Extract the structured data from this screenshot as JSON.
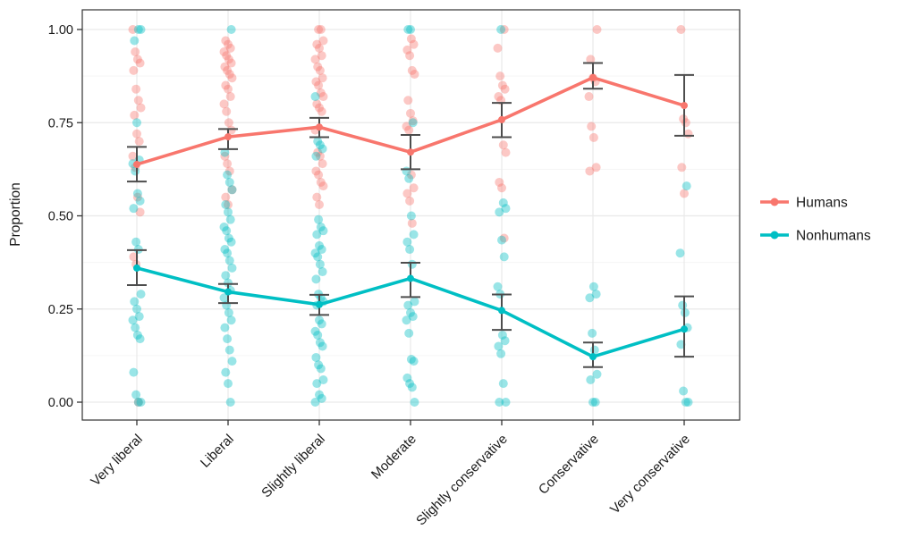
{
  "chart_data": {
    "type": "line",
    "subtype": "jittered-points-with-mean-line-and-errorbars",
    "title": "",
    "xlabel": "",
    "ylabel": "Proportion",
    "categories": [
      "Very liberal",
      "Liberal",
      "Slightly liberal",
      "Moderate",
      "Slightly conservative",
      "Conservative",
      "Very conservative"
    ],
    "y_ticks": [
      "0.00",
      "0.25",
      "0.50",
      "0.75",
      "1.00"
    ],
    "ylim": [
      0,
      1
    ],
    "grid": "horizontal major+minor, vertical major at categories",
    "legend_position": "right",
    "errorbar_color": "#4D4D4D",
    "panel_border_color": "#333333",
    "gridline_major_color": "#e9e9e9",
    "gridline_minor_color": "#f5f5f5",
    "series": [
      {
        "name": "Humans",
        "color": "#F8766D",
        "means": [
          0.638,
          0.712,
          0.738,
          0.671,
          0.758,
          0.871,
          0.796
        ],
        "ci_low": [
          0.592,
          0.679,
          0.711,
          0.625,
          0.711,
          0.841,
          0.715
        ],
        "ci_high": [
          0.685,
          0.733,
          0.763,
          0.717,
          0.803,
          0.91,
          0.878
        ],
        "points": [
          [
            1.0,
            0.94,
            0.92,
            0.91,
            0.89,
            0.84,
            0.81,
            0.79,
            0.77,
            0.72,
            0.7,
            0.66,
            0.63,
            0.55,
            0.51,
            0.39,
            0.37,
            0.0
          ],
          [
            0.97,
            0.96,
            0.95,
            0.94,
            0.93,
            0.92,
            0.91,
            0.9,
            0.89,
            0.88,
            0.87,
            0.85,
            0.84,
            0.82,
            0.8,
            0.78,
            0.75,
            0.73,
            0.66,
            0.64,
            0.62,
            0.57,
            0.55,
            0.53
          ],
          [
            1.0,
            1.0,
            0.97,
            0.96,
            0.95,
            0.93,
            0.92,
            0.9,
            0.89,
            0.87,
            0.86,
            0.85,
            0.83,
            0.82,
            0.8,
            0.79,
            0.78,
            0.73,
            0.67,
            0.66,
            0.64,
            0.62,
            0.61,
            0.59,
            0.58,
            0.55,
            0.53
          ],
          [
            0.975,
            0.96,
            0.945,
            0.93,
            0.89,
            0.88,
            0.81,
            0.775,
            0.755,
            0.74,
            0.73,
            0.61,
            0.575,
            0.56,
            0.54,
            0.48
          ],
          [
            1.0,
            0.95,
            0.875,
            0.85,
            0.84,
            0.82,
            0.81,
            0.69,
            0.67,
            0.59,
            0.575,
            0.44
          ],
          [
            1.0,
            0.92,
            0.87,
            0.86,
            0.82,
            0.74,
            0.71,
            0.63,
            0.62
          ],
          [
            1.0,
            0.76,
            0.75,
            0.72,
            0.63,
            0.56
          ]
        ]
      },
      {
        "name": "Nonhumans",
        "color": "#00BFC4",
        "means": [
          0.36,
          0.296,
          0.262,
          0.332,
          0.246,
          0.122,
          0.196
        ],
        "ci_low": [
          0.314,
          0.266,
          0.234,
          0.282,
          0.194,
          0.094,
          0.122
        ],
        "ci_high": [
          0.408,
          0.317,
          0.288,
          0.374,
          0.289,
          0.16,
          0.284
        ],
        "points": [
          [
            1.0,
            1.0,
            0.97,
            0.75,
            0.65,
            0.64,
            0.62,
            0.56,
            0.54,
            0.52,
            0.43,
            0.41,
            0.29,
            0.27,
            0.25,
            0.23,
            0.22,
            0.2,
            0.18,
            0.17,
            0.08,
            0.02,
            0.0,
            0.0
          ],
          [
            1.0,
            0.67,
            0.61,
            0.59,
            0.57,
            0.53,
            0.51,
            0.49,
            0.47,
            0.46,
            0.44,
            0.43,
            0.41,
            0.4,
            0.38,
            0.36,
            0.34,
            0.32,
            0.3,
            0.28,
            0.26,
            0.24,
            0.22,
            0.2,
            0.17,
            0.14,
            0.11,
            0.08,
            0.05,
            0.0
          ],
          [
            0.82,
            0.7,
            0.69,
            0.68,
            0.66,
            0.49,
            0.47,
            0.46,
            0.45,
            0.42,
            0.41,
            0.4,
            0.39,
            0.37,
            0.35,
            0.33,
            0.29,
            0.28,
            0.27,
            0.26,
            0.22,
            0.21,
            0.19,
            0.18,
            0.16,
            0.15,
            0.12,
            0.1,
            0.09,
            0.06,
            0.05,
            0.02,
            0.01,
            0.0
          ],
          [
            1.0,
            1.0,
            0.75,
            0.62,
            0.6,
            0.5,
            0.45,
            0.43,
            0.41,
            0.37,
            0.27,
            0.26,
            0.24,
            0.23,
            0.22,
            0.185,
            0.115,
            0.11,
            0.065,
            0.05,
            0.04,
            0.0
          ],
          [
            1.0,
            0.535,
            0.52,
            0.51,
            0.435,
            0.39,
            0.31,
            0.29,
            0.18,
            0.165,
            0.15,
            0.13,
            0.05,
            0.0,
            0.0
          ],
          [
            0.31,
            0.29,
            0.28,
            0.185,
            0.14,
            0.075,
            0.06,
            0.0,
            0.0
          ],
          [
            0.58,
            0.4,
            0.26,
            0.24,
            0.2,
            0.155,
            0.03,
            0.0,
            0.0
          ]
        ]
      }
    ]
  }
}
